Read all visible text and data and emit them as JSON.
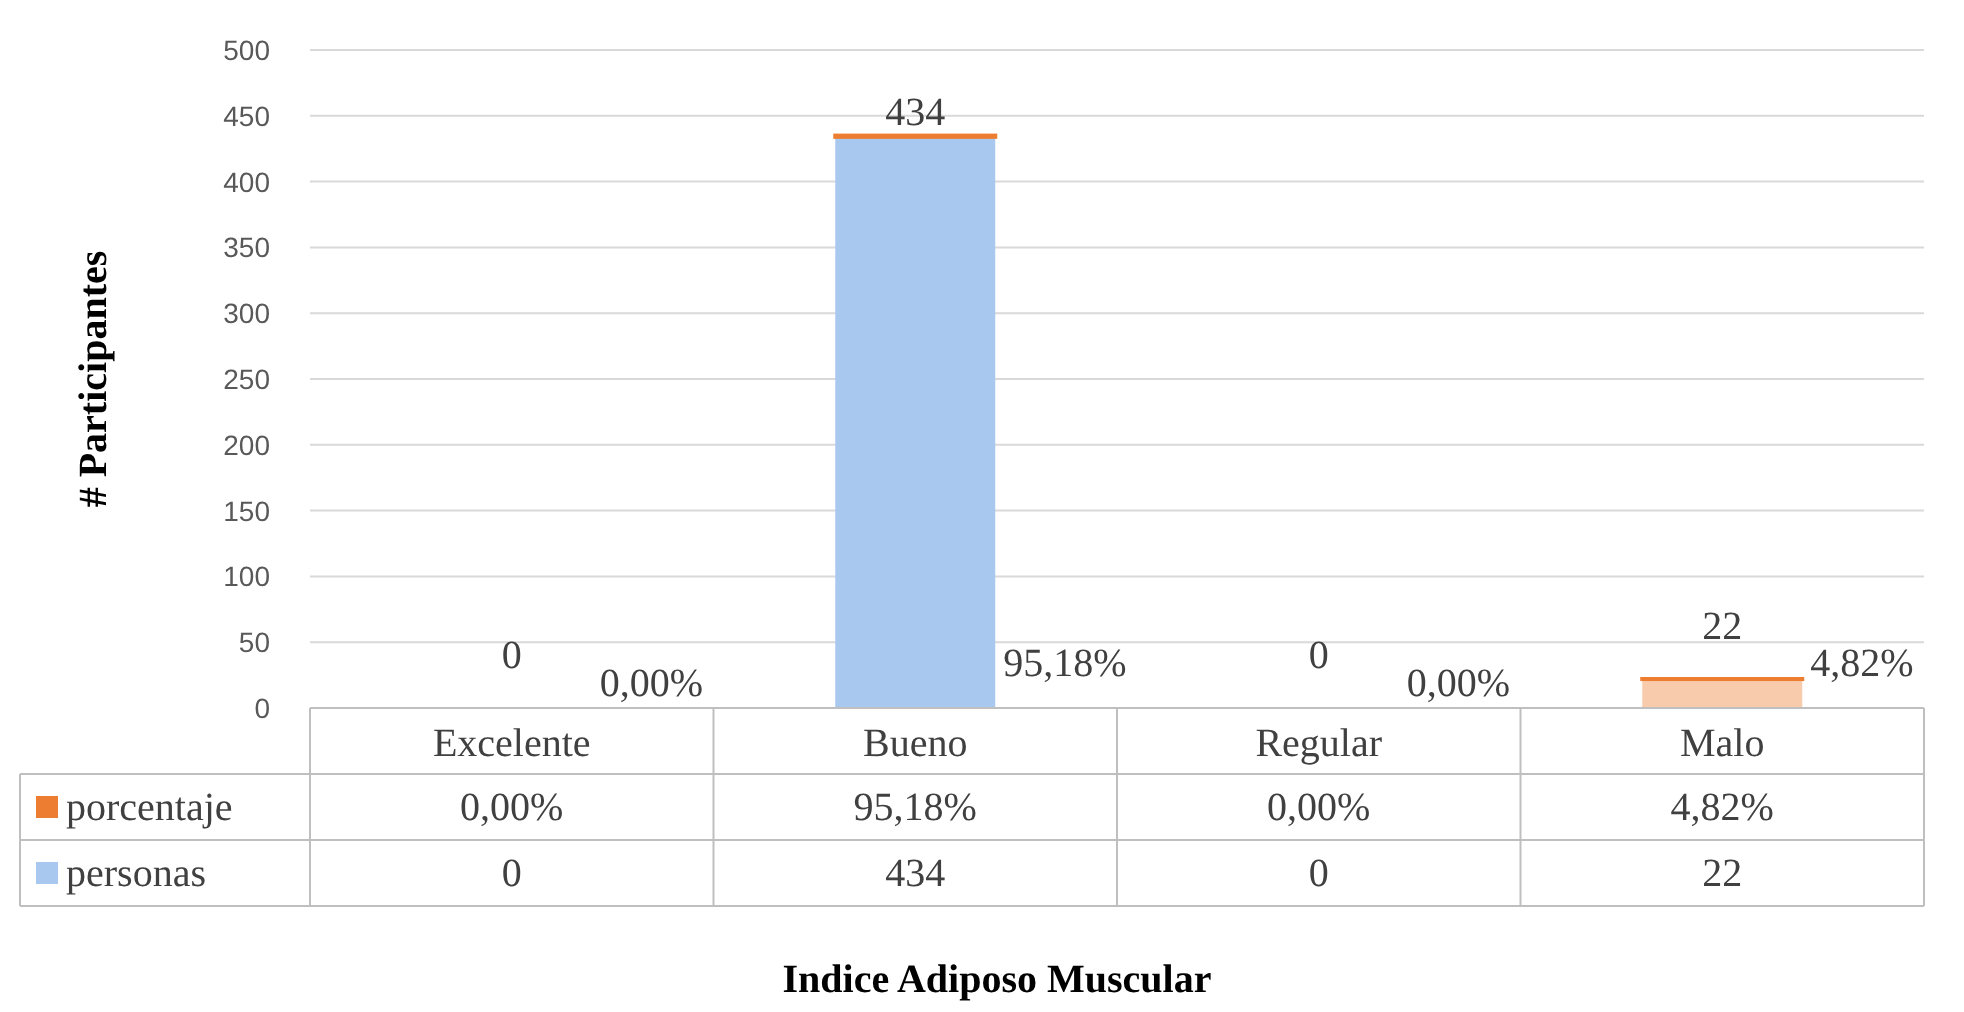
{
  "chart_data": {
    "type": "bar",
    "stacked": true,
    "xlabel": "Indice Adiposo Muscular",
    "ylabel": "# Participantes",
    "categories": [
      "Excelente",
      "Bueno",
      "Regular",
      "Malo"
    ],
    "series": [
      {
        "name": "personas",
        "color": "#a9c8f0",
        "colors": [
          "#a9c8f0",
          "#a9c8f0",
          "#a9c8f0",
          "#f8cbad"
        ],
        "values": [
          0,
          434,
          0,
          22
        ],
        "value_labels": [
          "0",
          "434",
          "0",
          "22"
        ]
      },
      {
        "name": "porcentaje",
        "color": "#ed7d31",
        "values": [
          0,
          0.9518,
          0,
          0.0482
        ],
        "value_labels": [
          "0,00%",
          "95,18%",
          "0,00%",
          "4,82%"
        ]
      }
    ],
    "ylim": [
      0,
      500
    ],
    "yticks": [
      0,
      50,
      100,
      150,
      200,
      250,
      300,
      350,
      400,
      450,
      500
    ],
    "grid": "y",
    "legend": "bottom"
  }
}
